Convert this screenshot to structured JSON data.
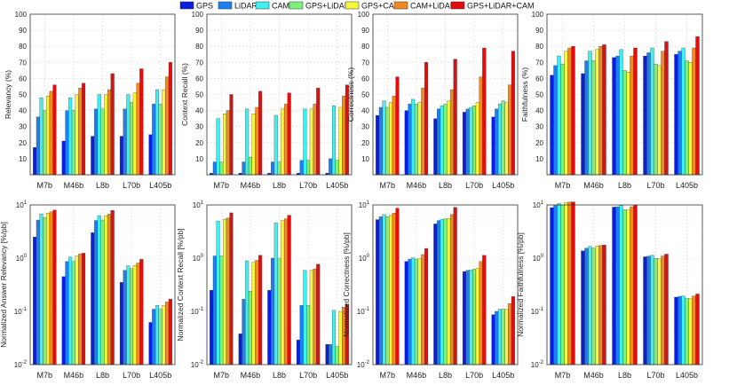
{
  "legend": [
    {
      "name": "GPS",
      "color": "#0a1ee0"
    },
    {
      "name": "LiDAR",
      "color": "#1e7ff0"
    },
    {
      "name": "CAM",
      "color": "#3ff0f0"
    },
    {
      "name": "GPS+LiDAR",
      "color": "#7cf27c"
    },
    {
      "name": "GPS+CAM",
      "color": "#f6f63a"
    },
    {
      "name": "CAM+LiDAR",
      "color": "#f28a22"
    },
    {
      "name": "GPS+LiDAR+CAM",
      "color": "#e00e0e"
    }
  ],
  "chart_data": [
    {
      "type": "bar",
      "scale": "linear",
      "ylabel": "Relevancy (%)",
      "ylim": [
        0,
        100
      ],
      "yticks": [
        "10",
        "20",
        "30",
        "40",
        "50",
        "60",
        "70",
        "80",
        "90",
        "100"
      ],
      "categories": [
        "M7b",
        "M46b",
        "L8b",
        "L70b",
        "L405b"
      ],
      "series": [
        {
          "name": "GPS",
          "values": [
            17,
            21,
            24,
            24,
            25
          ]
        },
        {
          "name": "LiDAR",
          "values": [
            36,
            40,
            41,
            41,
            44
          ]
        },
        {
          "name": "CAM",
          "values": [
            48,
            48,
            50,
            50,
            53
          ]
        },
        {
          "name": "GPS+LiDAR",
          "values": [
            40,
            40,
            41,
            45,
            44
          ]
        },
        {
          "name": "GPS+CAM",
          "values": [
            49,
            50,
            50,
            51,
            53
          ]
        },
        {
          "name": "CAM+LiDAR",
          "values": [
            52,
            54,
            53,
            57,
            61
          ]
        },
        {
          "name": "GPS+LiDAR+CAM",
          "values": [
            56,
            57,
            63,
            66,
            70
          ]
        }
      ]
    },
    {
      "type": "bar",
      "scale": "linear",
      "ylabel": "Context Recall (%)",
      "ylim": [
        0,
        100
      ],
      "yticks": [
        "10",
        "20",
        "30",
        "40",
        "50",
        "60",
        "70",
        "80",
        "90",
        "100"
      ],
      "categories": [
        "M7b",
        "M46b",
        "L8b",
        "L70b",
        "L405b"
      ],
      "series": [
        {
          "name": "GPS",
          "values": [
            1,
            1,
            1,
            1,
            1
          ]
        },
        {
          "name": "LiDAR",
          "values": [
            8,
            8,
            8,
            9,
            10
          ]
        },
        {
          "name": "CAM",
          "values": [
            35,
            41,
            37,
            41,
            43
          ]
        },
        {
          "name": "GPS+LiDAR",
          "values": [
            8,
            11,
            8,
            9,
            9
          ]
        },
        {
          "name": "GPS+CAM",
          "values": [
            38,
            38,
            41,
            41,
            42
          ]
        },
        {
          "name": "CAM+LiDAR",
          "values": [
            40,
            42,
            44,
            44,
            49
          ]
        },
        {
          "name": "GPS+LiDAR+CAM",
          "values": [
            50,
            52,
            51,
            54,
            56
          ]
        }
      ]
    },
    {
      "type": "bar",
      "scale": "linear",
      "ylabel": "Correctness (%)",
      "ylim": [
        0,
        100
      ],
      "yticks": [
        "10",
        "20",
        "30",
        "40",
        "50",
        "60",
        "70",
        "80",
        "90",
        "100"
      ],
      "categories": [
        "M7b",
        "M46b",
        "L8b",
        "L70b",
        "L405b"
      ],
      "series": [
        {
          "name": "GPS",
          "values": [
            37,
            40,
            35,
            39,
            36
          ]
        },
        {
          "name": "LiDAR",
          "values": [
            42,
            44,
            41,
            41,
            41
          ]
        },
        {
          "name": "CAM",
          "values": [
            46,
            47,
            43,
            42,
            44
          ]
        },
        {
          "name": "GPS+LiDAR",
          "values": [
            42,
            44,
            44,
            43,
            46
          ]
        },
        {
          "name": "GPS+CAM",
          "values": [
            45,
            45,
            46,
            45,
            45
          ]
        },
        {
          "name": "CAM+LiDAR",
          "values": [
            49,
            54,
            53,
            61,
            56
          ]
        },
        {
          "name": "GPS+LiDAR+CAM",
          "values": [
            61,
            70,
            72,
            79,
            77
          ]
        }
      ]
    },
    {
      "type": "bar",
      "scale": "linear",
      "ylabel": "Faithfulness (%)",
      "ylim": [
        0,
        100
      ],
      "yticks": [
        "10",
        "20",
        "30",
        "40",
        "50",
        "60",
        "70",
        "80",
        "90",
        "100"
      ],
      "categories": [
        "M7b",
        "M46b",
        "L8b",
        "L70b",
        "L405b"
      ],
      "series": [
        {
          "name": "GPS",
          "values": [
            62,
            63,
            73,
            74,
            75
          ]
        },
        {
          "name": "LiDAR",
          "values": [
            68,
            71,
            74,
            76,
            77
          ]
        },
        {
          "name": "CAM",
          "values": [
            74,
            77,
            78,
            79,
            79
          ]
        },
        {
          "name": "GPS+LiDAR",
          "values": [
            69,
            71,
            65,
            69,
            71
          ]
        },
        {
          "name": "GPS+CAM",
          "values": [
            77,
            78,
            64,
            68,
            70
          ]
        },
        {
          "name": "CAM+LiDAR",
          "values": [
            79,
            80,
            74,
            77,
            79
          ]
        },
        {
          "name": "GPS+LiDAR+CAM",
          "values": [
            80,
            81,
            79,
            83,
            86
          ]
        }
      ]
    },
    {
      "type": "bar",
      "scale": "log",
      "ylabel": "Normalized Answer Relevancy [%/pb]",
      "ylim": [
        0.01,
        10
      ],
      "yticks": [
        "10-2",
        "10-1",
        "100",
        "101"
      ],
      "categories": [
        "M7b",
        "M46b",
        "L8b",
        "L70b",
        "L405b"
      ],
      "series": [
        {
          "name": "GPS",
          "values": [
            2.5,
            0.45,
            3.0,
            0.35,
            0.062
          ]
        },
        {
          "name": "LiDAR",
          "values": [
            5.2,
            0.87,
            5.1,
            0.59,
            0.11
          ]
        },
        {
          "name": "CAM",
          "values": [
            6.8,
            1.05,
            6.3,
            0.72,
            0.13
          ]
        },
        {
          "name": "GPS+LiDAR",
          "values": [
            5.8,
            0.87,
            5.2,
            0.64,
            0.11
          ]
        },
        {
          "name": "GPS+CAM",
          "values": [
            7.0,
            1.1,
            6.3,
            0.73,
            0.13
          ]
        },
        {
          "name": "CAM+LiDAR",
          "values": [
            7.4,
            1.2,
            6.7,
            0.81,
            0.15
          ]
        },
        {
          "name": "GPS+LiDAR+CAM",
          "values": [
            8.0,
            1.24,
            7.9,
            0.95,
            0.17
          ]
        }
      ]
    },
    {
      "type": "bar",
      "scale": "log",
      "ylabel": "Normalized Context Recall [%/pb]",
      "ylim": [
        0.01,
        10
      ],
      "yticks": [
        "10-2",
        "10-1",
        "100",
        "101"
      ],
      "categories": [
        "M7b",
        "M46b",
        "L8b",
        "L70b",
        "L405b"
      ],
      "series": [
        {
          "name": "GPS",
          "values": [
            0.25,
            0.038,
            0.25,
            0.029,
            0.024
          ]
        },
        {
          "name": "LiDAR",
          "values": [
            1.1,
            0.17,
            1.0,
            0.13,
            0.024
          ]
        },
        {
          "name": "CAM",
          "values": [
            5.0,
            0.89,
            4.6,
            0.59,
            0.105
          ]
        },
        {
          "name": "GPS+LiDAR",
          "values": [
            1.1,
            0.24,
            1.0,
            0.13,
            0.022
          ]
        },
        {
          "name": "GPS+CAM",
          "values": [
            5.4,
            0.83,
            5.1,
            0.59,
            0.1
          ]
        },
        {
          "name": "CAM+LiDAR",
          "values": [
            5.7,
            0.91,
            5.5,
            0.63,
            0.12
          ]
        },
        {
          "name": "GPS+LiDAR+CAM",
          "values": [
            7.1,
            1.13,
            6.4,
            0.77,
            0.135
          ]
        }
      ]
    },
    {
      "type": "bar",
      "scale": "log",
      "ylabel": "Normalized Correctness [%/pb]",
      "ylim": [
        0.01,
        10
      ],
      "yticks": [
        "10-2",
        "10-1",
        "100",
        "101"
      ],
      "categories": [
        "M7b",
        "M46b",
        "L8b",
        "L70b",
        "L405b"
      ],
      "series": [
        {
          "name": "GPS",
          "values": [
            5.3,
            0.87,
            4.4,
            0.56,
            0.087
          ]
        },
        {
          "name": "LiDAR",
          "values": [
            6.0,
            0.96,
            5.1,
            0.59,
            0.1
          ]
        },
        {
          "name": "CAM",
          "values": [
            6.6,
            1.02,
            5.4,
            0.6,
            0.11
          ]
        },
        {
          "name": "GPS+LiDAR",
          "values": [
            6.0,
            0.96,
            5.5,
            0.62,
            0.11
          ]
        },
        {
          "name": "GPS+CAM",
          "values": [
            6.4,
            0.98,
            5.6,
            0.64,
            0.11
          ]
        },
        {
          "name": "CAM+LiDAR",
          "values": [
            7.0,
            1.17,
            6.6,
            0.87,
            0.14
          ]
        },
        {
          "name": "GPS+LiDAR+CAM",
          "values": [
            8.7,
            1.52,
            9.0,
            1.13,
            0.19
          ]
        }
      ]
    },
    {
      "type": "bar",
      "scale": "log",
      "ylabel": "Normalized Faithfulness [%/pb]",
      "ylim": [
        0.01,
        10
      ],
      "yticks": [
        "10-2",
        "10-1",
        "100",
        "101"
      ],
      "categories": [
        "M7b",
        "M46b",
        "L8b",
        "L70b",
        "L405b"
      ],
      "series": [
        {
          "name": "GPS",
          "values": [
            8.9,
            1.37,
            9.1,
            1.06,
            0.185
          ]
        },
        {
          "name": "LiDAR",
          "values": [
            9.7,
            1.54,
            9.25,
            1.09,
            0.19
          ]
        },
        {
          "name": "CAM",
          "values": [
            10.6,
            1.67,
            9.75,
            1.13,
            0.195
          ]
        },
        {
          "name": "GPS+LiDAR",
          "values": [
            9.9,
            1.54,
            8.1,
            0.99,
            0.175
          ]
        },
        {
          "name": "GPS+CAM",
          "values": [
            11.0,
            1.7,
            8.0,
            0.97,
            0.173
          ]
        },
        {
          "name": "CAM+LiDAR",
          "values": [
            11.3,
            1.74,
            9.25,
            1.1,
            0.195
          ]
        },
        {
          "name": "GPS+LiDAR+CAM",
          "values": [
            11.4,
            1.76,
            9.9,
            1.19,
            0.212
          ]
        }
      ]
    }
  ]
}
